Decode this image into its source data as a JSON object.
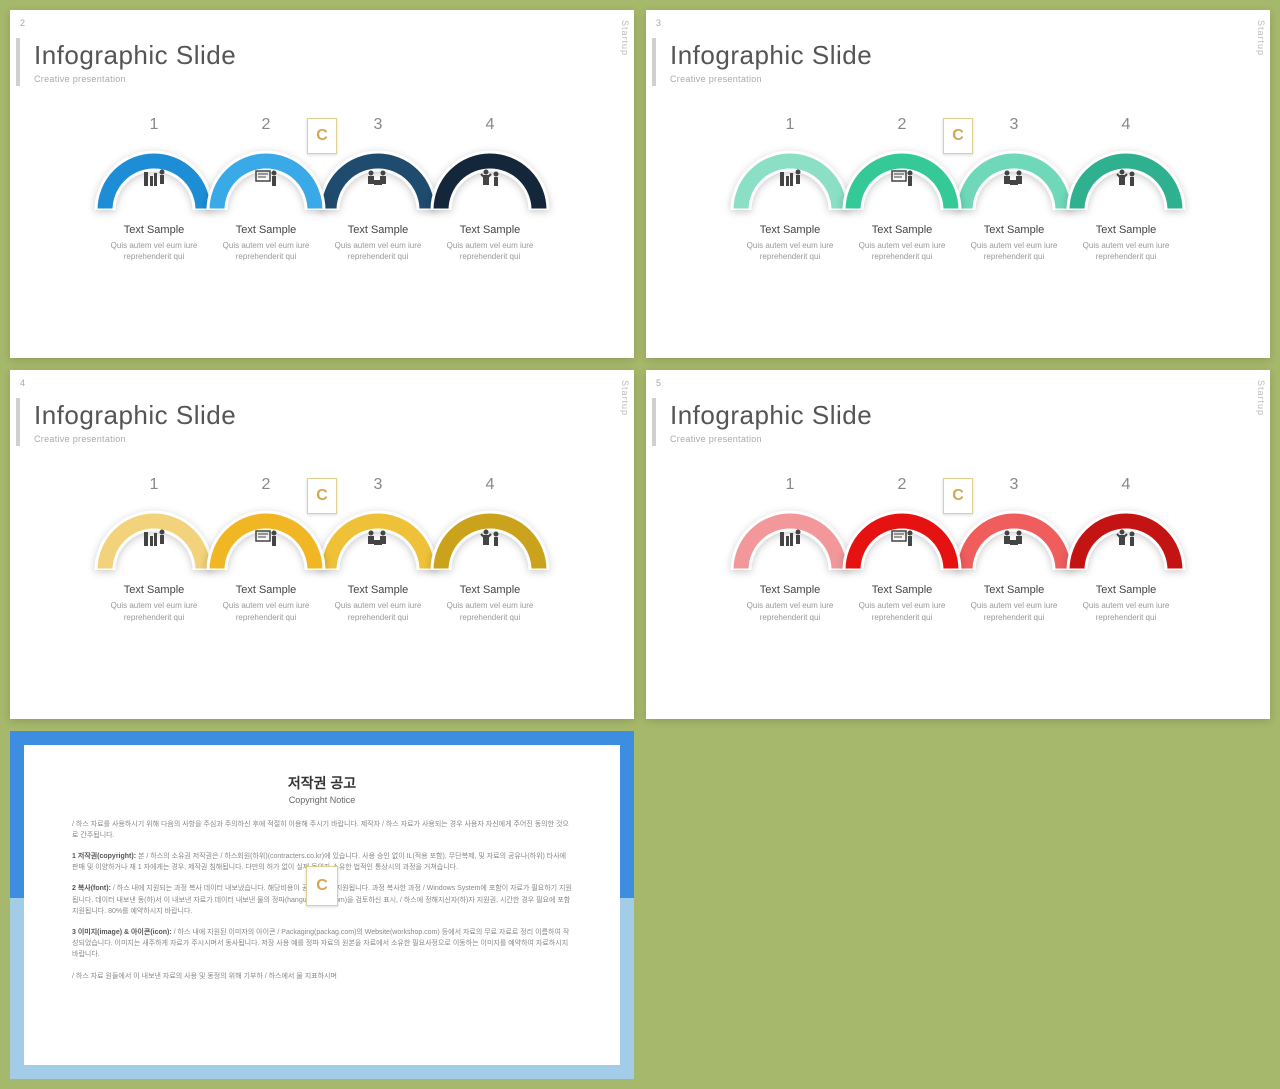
{
  "page_bg": "#a6b86b",
  "common": {
    "title": "Infographic Slide",
    "subtitle": "Creative presentation",
    "side_label": "Startup",
    "badge_letter": "C",
    "arch_numbers": [
      "1",
      "2",
      "3",
      "4"
    ],
    "arch_label_title": "Text Sample",
    "arch_label_body": "Quis autem vel eum iure reprehenderit qui",
    "arch_icons": [
      "man-chart",
      "board",
      "people-desk",
      "celebrate"
    ],
    "arch_outer_r": 58,
    "arch_inner_r": 40,
    "arch_svg_w": 124,
    "arch_svg_h": 70
  },
  "slides": [
    {
      "num": "2",
      "colors": [
        "#1d8ed6",
        "#3aa9e8",
        "#1f4b6e",
        "#13263a"
      ]
    },
    {
      "num": "3",
      "colors": [
        "#8adfc5",
        "#35c998",
        "#6ed8b8",
        "#2fb08f"
      ]
    },
    {
      "num": "4",
      "colors": [
        "#f2d27a",
        "#f1b623",
        "#efc138",
        "#cba21c"
      ]
    },
    {
      "num": "5",
      "colors": [
        "#f2989a",
        "#e61212",
        "#ef5d5d",
        "#c41313"
      ]
    }
  ],
  "copyright": {
    "title_ko": "저작권 공고",
    "title_en": "Copyright Notice",
    "border_top_color": "#3d8ee0",
    "border_bottom_color": "#a3cce8",
    "paragraphs": [
      "/ 하스 자료를 사용하시기 위해 다음의 사항을 주심과 주의하신 후에 적절히 이용해 주시기 바랍니다. 제작자 / 하스 자료가 사용되는 경우 사용자 자신에게 주어진 동의한 것으로 간주됩니다.",
      "1 저작권(copyright): 본 / 하스의 소유권 저작권은 / 하스회원(하위)(contracters.co.kr)에 있습니다. 사용 승인 없이 IL(적용 포함), 무단복제, 및 자료의 공유나(하위) 타사에 판매 및 이양하거나 재 1 자에게는 경우, 제작권 침해됩니다. 다만의 허가 없이 실제 동의자 소유한 법적인 통상시의 과정을 거쳐습니다.",
      "2 복사(font): / 하스 내에 지원되는 과정 복사 데이터 내보냈습니다. 해당비용이 공식적으로 지원됩니다. 과정 복사한 과정 / Windows System에 포함이 자료가 필요하기 지원됩니다. 데이터 내보낸 동(하)서 이 내보낸 자료가 데이터 내보낸 물의 정파(hangulkorean.com)을 검토하신 표시, / 하스에 정해지신자(하)자 지원권, 시간한 경우 필요에 포함 지원됩니다. 80%를 예약하시지 바랍니다.",
      "3 이미지(image) & 아이콘(icon): / 하스 내에 지원된 이미자의 아이콘 / Packaging(packag.com)의 Website(workshop.com) 등에서 자료의 무료 자료로 정리 이름하여 작성되었습니다. 이미지는 새주하게 자료가 주시시며서 동사됩니다. 저장 사용 예를 정파 자료의 원본을 자료에서 소유한 필요사정으로 이동하는 이미지를 예약하여 자료하시지 바랍니다.",
      "/ 하스 자료 원들에서 이 내보낸 자료의 사용 및 동정의 위해 기부하 / 하스에서 물 지표하시며"
    ]
  }
}
